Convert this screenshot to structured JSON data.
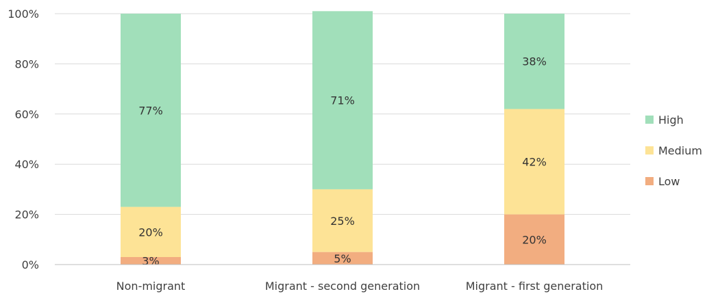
{
  "chart_data": {
    "type": "bar",
    "stacked": true,
    "categories": [
      "Non-migrant",
      "Migrant - second generation",
      "Migrant - first generation"
    ],
    "series": [
      {
        "name": "Low",
        "color": "#f2ad80",
        "values": [
          3,
          5,
          20
        ],
        "labels": [
          "3%",
          "5%",
          "20%"
        ]
      },
      {
        "name": "Medium",
        "color": "#fde396",
        "values": [
          20,
          25,
          42
        ],
        "labels": [
          "20%",
          "25%",
          "42%"
        ]
      },
      {
        "name": "High",
        "color": "#a1dfba",
        "values": [
          77,
          71,
          38
        ],
        "labels": [
          "77%",
          "71%",
          "38%"
        ]
      }
    ],
    "yticks": [
      "0%",
      "20%",
      "40%",
      "60%",
      "80%",
      "100%"
    ],
    "ylim": [
      0,
      100
    ],
    "grid": true,
    "legend": {
      "position": "right",
      "order": [
        "High",
        "Medium",
        "Low"
      ]
    },
    "title": "",
    "xlabel": "",
    "ylabel": ""
  }
}
